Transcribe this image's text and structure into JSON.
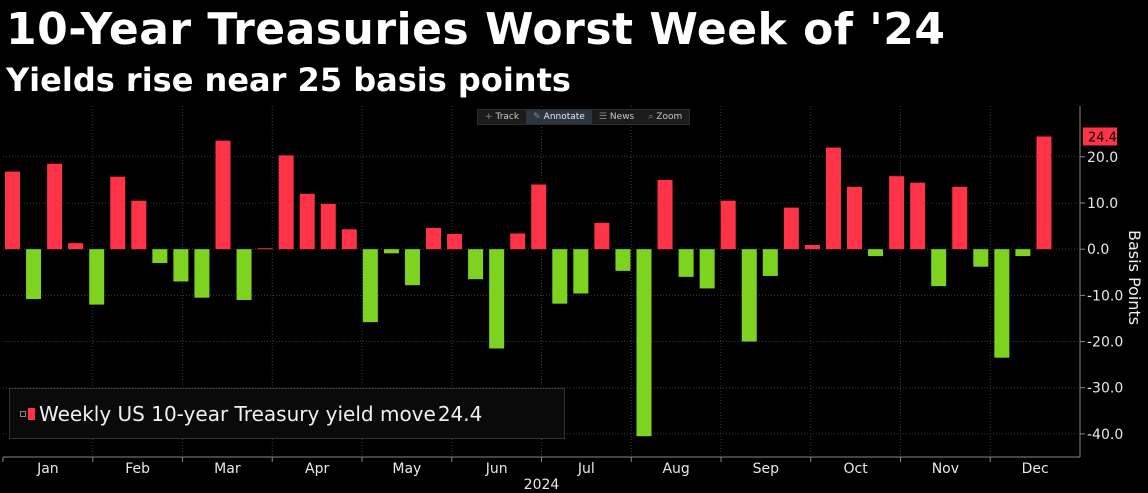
{
  "header": {
    "title": "10-Year Treasuries Worst Week of '24",
    "subtitle": "Yields rise near 25 basis points"
  },
  "toolbar": {
    "items": [
      {
        "icon": "crosshair-icon",
        "label": "Track"
      },
      {
        "icon": "pencil-icon",
        "label": "Annotate"
      },
      {
        "icon": "news-icon",
        "label": "News"
      },
      {
        "icon": "zoom-icon",
        "label": "Zoom"
      }
    ]
  },
  "legend": {
    "label": "Weekly US 10-year Treasury yield move",
    "value": "24.4"
  },
  "colors": {
    "positive": "#ff3347",
    "negative": "#7ed321",
    "background": "#000000",
    "grid": "#3a3a3a"
  },
  "chart_data": {
    "type": "bar",
    "title": "10-Year Treasuries Worst Week of '24",
    "subtitle": "Yields rise near 25 basis points",
    "ylabel": "Basis Points",
    "xlabel": "2024",
    "ylim": [
      -45,
      31
    ],
    "yticks": [
      20.0,
      10.0,
      0.0,
      -10.0,
      -20.0,
      -30.0,
      -40.0
    ],
    "ytick_labels": [
      "20.0",
      "10.0",
      "0.0",
      "-10.0",
      "-20.0",
      "-30.0",
      "-40.0"
    ],
    "months": [
      "Jan",
      "Feb",
      "Mar",
      "Apr",
      "May",
      "Jun",
      "Jul",
      "Aug",
      "Sep",
      "Oct",
      "Nov",
      "Dec"
    ],
    "last_value_label": "24.4",
    "grid": true,
    "legend_position": "bottom-left",
    "values": [
      16.8,
      -10.8,
      18.5,
      1.3,
      -12.0,
      15.7,
      10.5,
      -3.0,
      -7.0,
      -10.5,
      23.5,
      -11.0,
      0.2,
      20.3,
      12.0,
      9.8,
      4.3,
      -15.8,
      -0.9,
      -7.8,
      4.6,
      3.3,
      -6.5,
      -21.5,
      3.4,
      14.0,
      -11.8,
      -9.6,
      5.7,
      -4.7,
      -40.5,
      15.0,
      -6.0,
      -8.5,
      10.5,
      -20.0,
      -5.8,
      9.0,
      0.9,
      22.0,
      13.5,
      -1.5,
      15.8,
      14.4,
      -8.0,
      13.5,
      -3.8,
      -23.5,
      -1.5,
      24.4
    ],
    "series": [
      {
        "name": "Weekly US 10-year Treasury yield move"
      }
    ]
  }
}
